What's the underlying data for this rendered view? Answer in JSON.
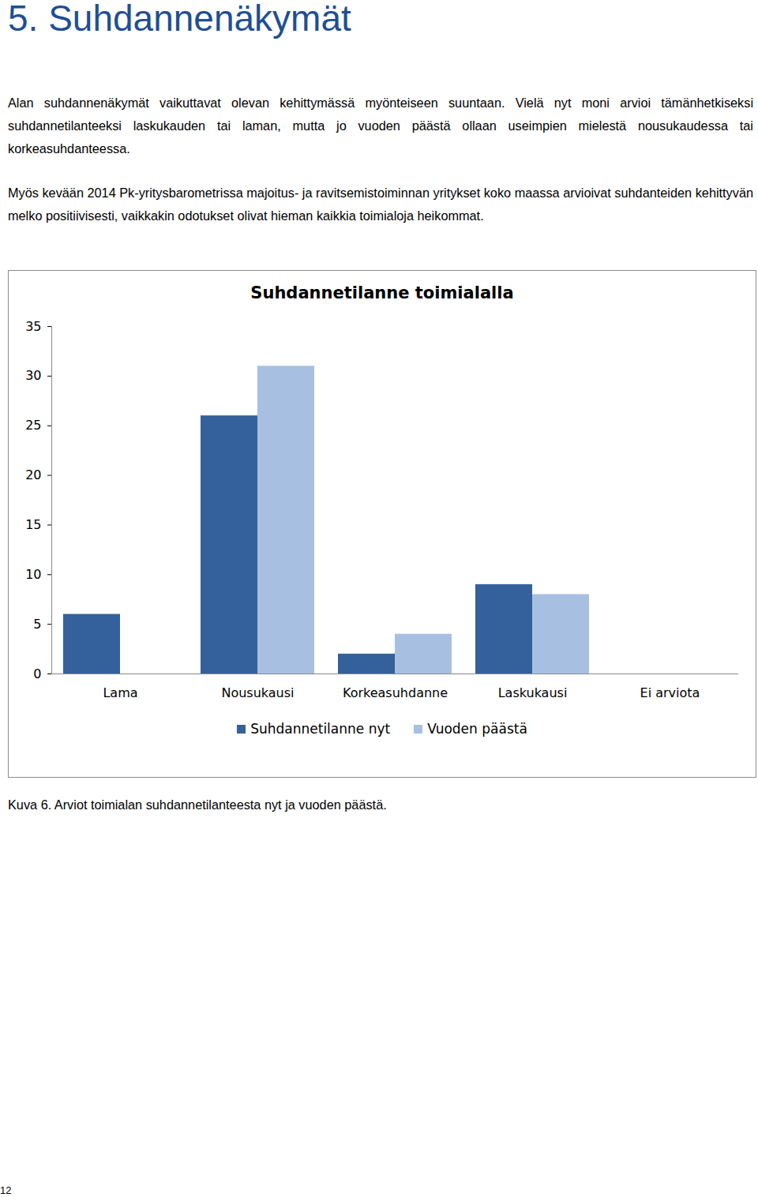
{
  "heading": "5. Suhdannenäkymät",
  "paragraphs": [
    "Alan suhdannenäkymät vaikuttavat olevan kehittymässä myönteiseen suuntaan. Vielä nyt moni arvioi tämänhetkiseksi suhdannetilanteeksi laskukauden tai laman, mutta jo vuoden päästä ollaan useimpien mielestä nousukaudessa tai korkeasuhdanteessa.",
    "Myös kevään 2014 Pk-yritysbarometrissa majoitus- ja ravitsemistoiminnan yritykset koko maassa arvioivat suhdanteiden kehittyvän melko positiivisesti, vaikkakin odotukset olivat hieman kaikkia toimialoja heikommat."
  ],
  "chart_data": {
    "type": "bar",
    "title": "Suhdannetilanne toimialalla",
    "categories": [
      "Lama",
      "Nousukausi",
      "Korkeasuhdanne",
      "Laskukausi",
      "Ei arviota"
    ],
    "series": [
      {
        "name": "Suhdannetilanne nyt",
        "color": "#34609c",
        "values": [
          6,
          26,
          2,
          9,
          0
        ]
      },
      {
        "name": "Vuoden päästä",
        "color": "#a7c0e2",
        "values": [
          0,
          31,
          4,
          8,
          0
        ]
      }
    ],
    "ylim": [
      0,
      35
    ],
    "yticks": [
      0,
      5,
      10,
      15,
      20,
      25,
      30,
      35
    ],
    "grid": false,
    "legend": "bottom"
  },
  "caption": "Kuva 6. Arviot toimialan suhdannetilanteesta nyt ja vuoden päästä.",
  "page_number": "12"
}
